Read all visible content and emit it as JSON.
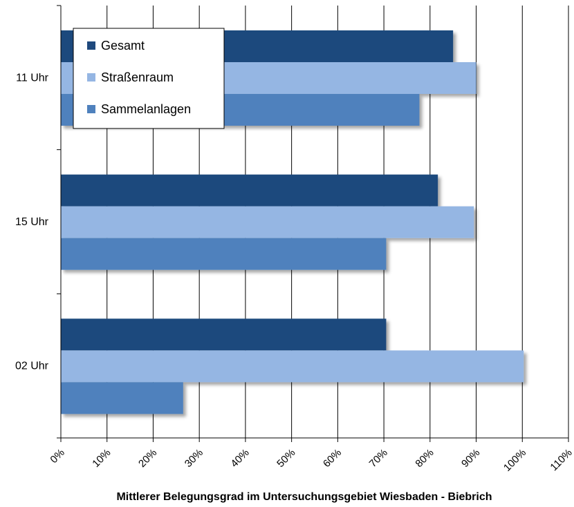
{
  "chart_data": {
    "type": "bar",
    "orientation": "horizontal",
    "categories": [
      "11 Uhr",
      "15 Uhr",
      "02 Uhr"
    ],
    "series": [
      {
        "name": "Gesamt",
        "color": "#1f497d",
        "values": [
          85,
          81.7,
          70.5
        ]
      },
      {
        "name": "Straßenraum",
        "color": "#95b6e3",
        "values": [
          90,
          89.5,
          100.3
        ]
      },
      {
        "name": "Sammelanlagen",
        "color": "#4f81bd",
        "values": [
          77.7,
          70.5,
          26.5
        ]
      }
    ],
    "xlabel": "Mittlerer Belegungsgrad im Untersuchungsgebiet Wiesbaden - Biebrich",
    "ylabel": "",
    "title": "",
    "xlim": [
      0,
      110
    ],
    "xticks": [
      "0%",
      "10%",
      "20%",
      "30%",
      "40%",
      "50%",
      "60%",
      "70%",
      "80%",
      "90%",
      "100%",
      "110%"
    ],
    "grid": true,
    "legend_position": "top-left"
  }
}
